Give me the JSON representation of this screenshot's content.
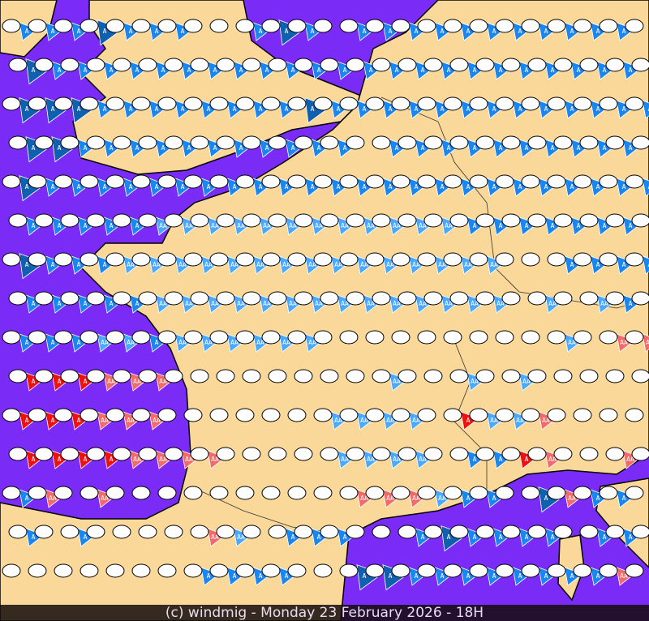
{
  "footer": {
    "text": "(c) windmig - Monday 23 February 2026 - 18H"
  },
  "colors": {
    "sea": "#7a2cf6",
    "land": "#f9d89a",
    "coast": "#000000",
    "calm": "#ffffff",
    "strong_blue": "#1a86f0",
    "light_blue": "#4aa8ff",
    "dark_blue": "#1060b0",
    "red": "#ee1111",
    "pink": "#f26a6a"
  },
  "legend_codes": {
    ".": "calm",
    "b": "A",
    "l": "AA",
    "d": "A",
    "r": "A",
    "p": "AA"
  },
  "marker_rows": [
    "bbbdbbb..bdb.bbbbbbbbbbb.",
    "dbbbbbbbbbbbbbbbbbbbbbbbb",
    "dddbbbbbbbbdbbbbbbbbbbbbb",
    "ddbbbbbbbbbbb.bbbbbbbbbbb",
    "dbbbbbbbbbbbbbbbbbbbbbbbb",
    "bbbbbllllllllllllbbbbbbbb",
    "dbbblllllllllllllll..bbbb",
    "bbbbbllllllllllllll.l.lbp",
    "bbbllbllllll.........l.pp",
    "rrrppp........l..l.l.....",
    "rrrppp......llll.rllp....",
    "rrrrpppp....llll.bbrp..p.",
    "bp.p.........ppplbb.dpbb.",
    "b.b....pl.bbb..bdbbbb.bb.",
    ".......bbbb..ddbbbbbbbbp."
  ]
}
